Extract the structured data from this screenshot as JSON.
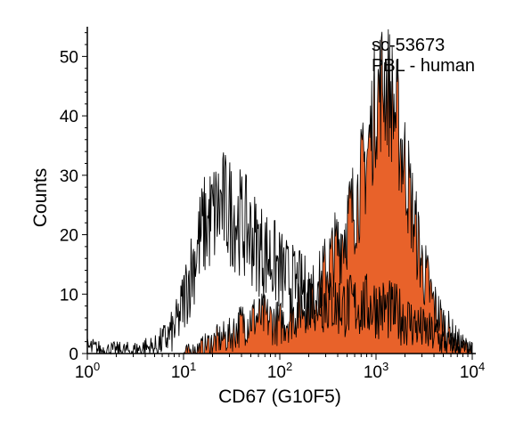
{
  "chart_data": {
    "type": "area",
    "title": "",
    "xlabel": "CD67 (G10F5)",
    "ylabel": "Counts",
    "x_scale": "log",
    "xlim": [
      1,
      10000
    ],
    "ylim": [
      0,
      55
    ],
    "x_ticks": [
      {
        "value": 1,
        "base": "10",
        "exp": "0"
      },
      {
        "value": 10,
        "base": "10",
        "exp": "1"
      },
      {
        "value": 100,
        "base": "10",
        "exp": "2"
      },
      {
        "value": 1000,
        "base": "10",
        "exp": "3"
      },
      {
        "value": 10000,
        "base": "10",
        "exp": "4"
      }
    ],
    "y_ticks": [
      0,
      10,
      20,
      30,
      40,
      50
    ],
    "annotations": [
      "sc-53673",
      "PBL - human"
    ],
    "colors": {
      "filled": "#e8622a",
      "outline": "#000000"
    },
    "series": [
      {
        "style": "open",
        "x": [
          1,
          1.5,
          2,
          3,
          4,
          5,
          6,
          7,
          8,
          9,
          10,
          12,
          14,
          16,
          18,
          20,
          25,
          30,
          35,
          40,
          50,
          60,
          70,
          80,
          100,
          130,
          160,
          200,
          300,
          400,
          500,
          700,
          1000,
          1500,
          2000,
          3000,
          4000,
          5000,
          7000,
          10000
        ],
        "y": [
          1,
          0.5,
          0.5,
          0.5,
          1,
          1,
          2,
          3,
          4,
          6,
          9,
          14,
          18,
          21,
          22,
          23,
          25,
          24,
          23,
          22,
          20,
          18,
          17,
          16,
          14,
          12,
          11,
          10,
          9,
          8,
          8,
          8,
          8,
          7,
          6,
          4,
          3,
          2,
          1,
          0.5
        ]
      },
      {
        "style": "filled",
        "x": [
          10,
          12,
          15,
          20,
          30,
          40,
          50,
          70,
          100,
          150,
          200,
          250,
          300,
          400,
          500,
          600,
          700,
          800,
          900,
          1000,
          1200,
          1400,
          1600,
          2000,
          2500,
          3000,
          4000,
          5000,
          7000,
          10000
        ],
        "y": [
          0,
          0.5,
          1,
          2,
          3,
          5,
          6,
          6,
          5,
          7,
          9,
          11,
          14,
          18,
          22,
          25,
          29,
          33,
          38,
          43,
          46,
          44,
          40,
          32,
          22,
          15,
          8,
          5,
          2,
          0.5
        ]
      }
    ]
  }
}
